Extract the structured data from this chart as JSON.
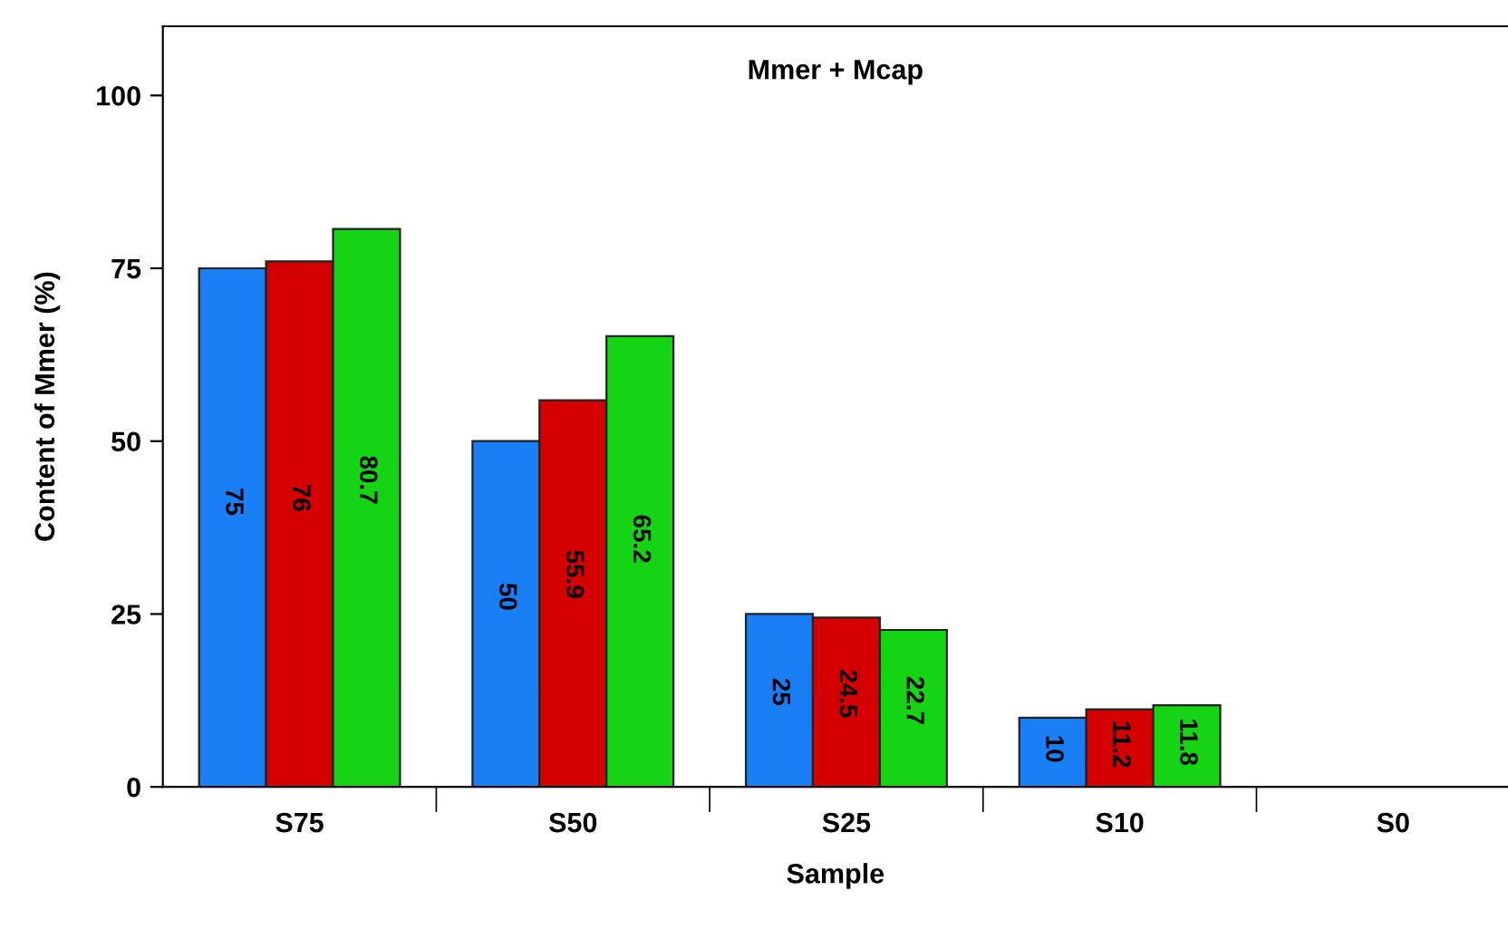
{
  "chart_data": {
    "type": "bar",
    "title": "Mmer + Mcap",
    "xlabel": "Sample",
    "ylabel": "Content of Mmer (%)",
    "categories": [
      "S75",
      "S50",
      "S25",
      "S10",
      "S0"
    ],
    "series": [
      {
        "color": "#1a7ef5",
        "values": [
          75,
          50,
          25,
          10,
          null
        ]
      },
      {
        "color": "#d40000",
        "values": [
          76,
          55.9,
          24.5,
          11.2,
          null
        ]
      },
      {
        "color": "#14d414",
        "values": [
          80.7,
          65.2,
          22.7,
          11.8,
          null
        ]
      }
    ],
    "ylim": [
      0,
      110
    ],
    "yticks": [
      0,
      25,
      50,
      75,
      100
    ],
    "data_labels": true,
    "grid": false,
    "legend": false
  }
}
